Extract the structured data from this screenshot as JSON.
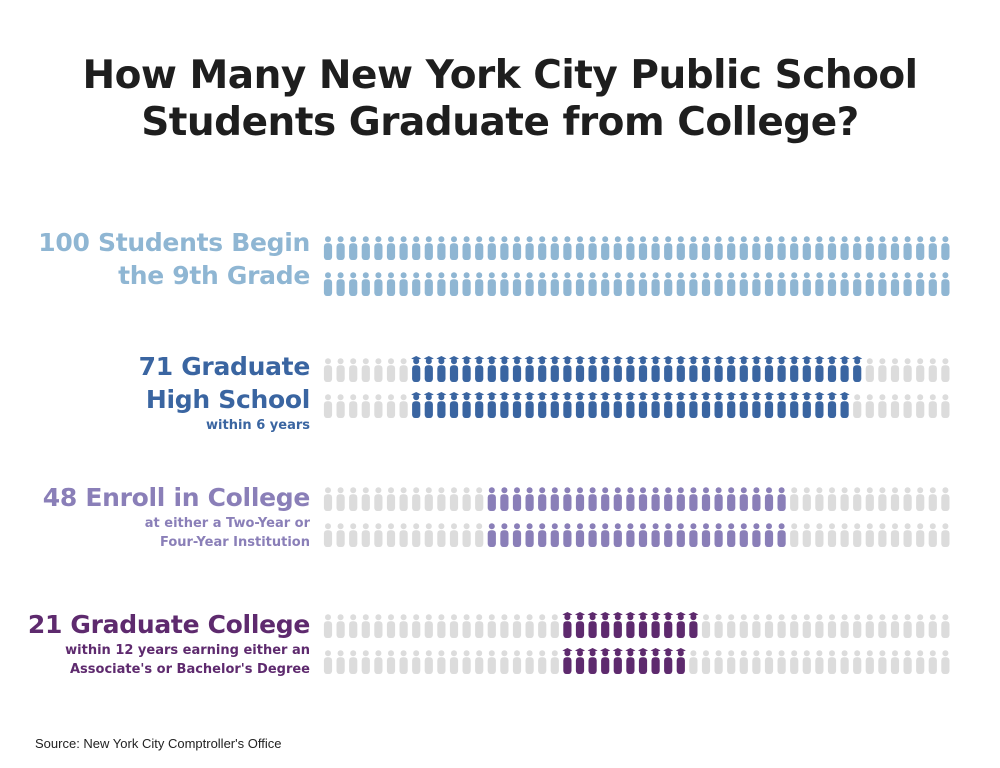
{
  "title_line1": "How Many New York City Public School",
  "title_line2": "Students Graduate from College?",
  "source": "Source: New York City Comptroller's Office",
  "chart_data": {
    "type": "pictograph",
    "unit": "students",
    "total": 100,
    "inactive_color": "#dcdcdc",
    "rows": [
      {
        "value": 100,
        "label_line1": "100 Students Begin",
        "label_line2": "the 9th Grade",
        "sub_line1": "",
        "sub_line2": "",
        "color": "#8fb6d3",
        "cap": false
      },
      {
        "value": 71,
        "label_line1": "71 Graduate",
        "label_line2": "High School",
        "sub_line1": "within 6 years",
        "sub_line2": "",
        "color": "#3a65a1",
        "cap": true
      },
      {
        "value": 48,
        "label_line1": "48 Enroll in College",
        "label_line2": "",
        "sub_line1": "at either a Two-Year or",
        "sub_line2": "Four-Year Institution",
        "color": "#8a7fb8",
        "cap": false
      },
      {
        "value": 21,
        "label_line1": "21 Graduate College",
        "label_line2": "",
        "sub_line1": "within 12 years earning either an",
        "sub_line2": "Associate's or Bachelor's Degree",
        "color": "#5e2a6e",
        "cap": true
      }
    ]
  }
}
